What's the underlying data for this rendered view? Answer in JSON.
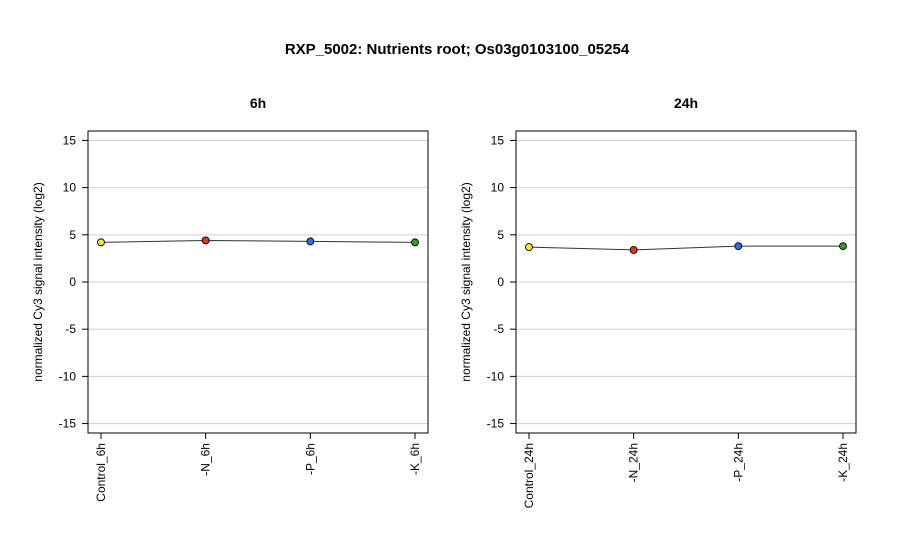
{
  "title": "RXP_5002: Nutrients root; Os03g0103100_05254",
  "chart_data": [
    {
      "type": "line",
      "title": "6h",
      "ylabel": "normalized Cy3 signal intensity (log2)",
      "ylim": [
        -16,
        16
      ],
      "yticks": [
        -15,
        -10,
        -5,
        0,
        5,
        10,
        15
      ],
      "grid": true,
      "categories": [
        "Control_6h",
        "-N_6h",
        "-P_6h",
        "-K_6h"
      ],
      "values": [
        4.2,
        4.4,
        4.3,
        4.2
      ],
      "point_colors": [
        "#f5e642",
        "#d93a1e",
        "#2e6fd8",
        "#3a9a2a"
      ]
    },
    {
      "type": "line",
      "title": "24h",
      "ylabel": "normalized Cy3 signal intensity (log2)",
      "ylim": [
        -16,
        16
      ],
      "yticks": [
        -15,
        -10,
        -5,
        0,
        5,
        10,
        15
      ],
      "grid": true,
      "categories": [
        "Control_24h",
        "-N_24h",
        "-P_24h",
        "-K_24h"
      ],
      "values": [
        3.7,
        3.4,
        3.8,
        3.8
      ],
      "point_colors": [
        "#f5e642",
        "#d93a1e",
        "#2e6fd8",
        "#3a9a2a"
      ]
    }
  ]
}
